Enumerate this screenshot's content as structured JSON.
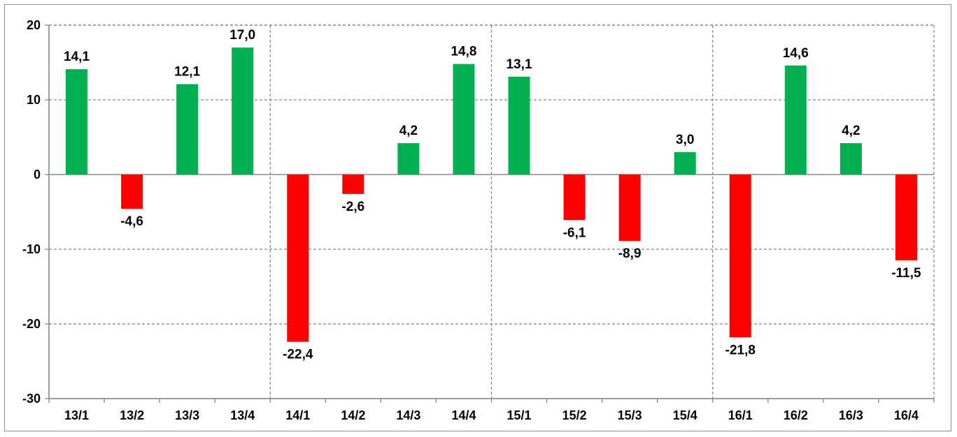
{
  "chart_data": {
    "type": "bar",
    "title": "",
    "xlabel": "",
    "ylabel": "",
    "ylim": [
      -30,
      20
    ],
    "yticks": [
      20,
      10,
      0,
      -10,
      -20,
      -30
    ],
    "categories": [
      "13/1",
      "13/2",
      "13/3",
      "13/4",
      "14/1",
      "14/2",
      "14/3",
      "14/4",
      "15/1",
      "15/2",
      "15/3",
      "15/4",
      "16/1",
      "16/2",
      "16/3",
      "16/4"
    ],
    "values": [
      14.1,
      -4.6,
      12.1,
      17.0,
      -22.4,
      -2.6,
      4.2,
      14.8,
      13.1,
      -6.1,
      -8.9,
      3.0,
      -21.8,
      14.6,
      4.2,
      -11.5
    ],
    "data_labels": [
      "14,1",
      "-4,6",
      "12,1",
      "17,0",
      "-22,4",
      "-2,6",
      "4,2",
      "14,8",
      "13,1",
      "-6,1",
      "-8,9",
      "3,0",
      "-21,8",
      "14,6",
      "4,2",
      "-11,5"
    ],
    "grid": true,
    "legend": "none",
    "colors": {
      "positive": "#00b050",
      "negative": "#ff0000",
      "grid": "#808080"
    }
  }
}
